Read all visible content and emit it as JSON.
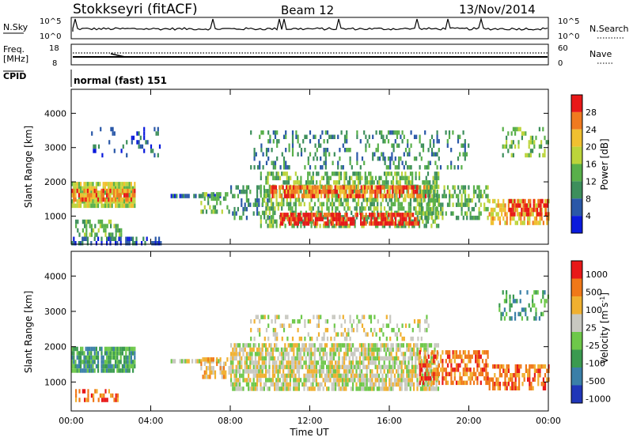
{
  "header": {
    "station": "Stokkseyri (fitACF)",
    "beam": "Beam 12",
    "date": "13/Nov/2014"
  },
  "strip": {
    "nsky_label": "N.Sky",
    "nsky_top": "10^5",
    "nsky_bottom": "10^0",
    "nsearch_label": "N.Search",
    "freq_label": "Freq.",
    "freq_unit": "[MHz]",
    "freq_top": "18",
    "freq_bottom": "8",
    "nave_label": "Nave",
    "nave_top": "60",
    "nave_bottom": "0",
    "cpid_label": "CPID",
    "cpid_value": "normal (fast) 151",
    "nsky_right_top": "10^5",
    "nsky_right_bottom": "10^0"
  },
  "chart_data": [
    {
      "type": "heatmap",
      "panel": "power",
      "ylabel": "Slant Range [km]",
      "yticks": [
        1000,
        2000,
        3000,
        4000
      ],
      "ylim": [
        180,
        4700
      ],
      "xticks": [
        "00:00",
        "04:00",
        "08:00",
        "12:00",
        "16:00",
        "20:00",
        "00:00"
      ],
      "xlim_hours": [
        0,
        24
      ],
      "colorbar_label": "Power [dB]",
      "colorbar_ticks": [
        "4",
        "8",
        "12",
        "16",
        "20",
        "24",
        "28"
      ],
      "colors": [
        "#0a1adc",
        "#2a58a8",
        "#3d8f5c",
        "#59b04a",
        "#bcd43a",
        "#f0c030",
        "#f07a20",
        "#e81818"
      ],
      "bands": [
        {
          "t0": 0.0,
          "t1": 3.2,
          "r0": 1300,
          "r1": 2000,
          "level": 4,
          "density": 0.9
        },
        {
          "t0": 0.0,
          "t1": 3.2,
          "r0": 1450,
          "r1": 1800,
          "level": 6,
          "density": 0.7
        },
        {
          "t0": 0.2,
          "t1": 2.5,
          "r0": 500,
          "r1": 900,
          "level": 3,
          "density": 0.5
        },
        {
          "t0": 0.0,
          "t1": 4.5,
          "r0": 190,
          "r1": 400,
          "level": 1,
          "density": 0.5
        },
        {
          "t0": 1.0,
          "t1": 4.5,
          "r0": 2800,
          "r1": 3600,
          "level": 1,
          "density": 0.15
        },
        {
          "t0": 5.0,
          "t1": 7.5,
          "r0": 1550,
          "r1": 1650,
          "level": 1,
          "density": 0.7
        },
        {
          "t0": 6.5,
          "t1": 8.0,
          "r0": 1100,
          "r1": 1700,
          "level": 3,
          "density": 0.5
        },
        {
          "t0": 8.0,
          "t1": 10.0,
          "r0": 900,
          "r1": 1900,
          "level": 2,
          "density": 0.35
        },
        {
          "t0": 9.5,
          "t1": 18.5,
          "r0": 750,
          "r1": 2300,
          "level": 3,
          "density": 0.55
        },
        {
          "t0": 10.0,
          "t1": 18.0,
          "r0": 1550,
          "r1": 1900,
          "level": 6,
          "density": 0.75
        },
        {
          "t0": 10.5,
          "t1": 17.5,
          "r0": 800,
          "r1": 1100,
          "level": 7,
          "density": 0.75
        },
        {
          "t0": 9.0,
          "t1": 20.0,
          "r0": 2400,
          "r1": 3500,
          "level": 2,
          "density": 0.25
        },
        {
          "t0": 17.5,
          "t1": 21.0,
          "r0": 1000,
          "r1": 1900,
          "level": 3,
          "density": 0.45
        },
        {
          "t0": 21.0,
          "t1": 24.0,
          "r0": 800,
          "r1": 1500,
          "level": 5,
          "density": 0.6
        },
        {
          "t0": 22.0,
          "t1": 24.0,
          "r0": 1100,
          "r1": 1500,
          "level": 7,
          "density": 0.6
        },
        {
          "t0": 21.5,
          "t1": 24.0,
          "r0": 2800,
          "r1": 3600,
          "level": 3,
          "density": 0.3
        }
      ]
    },
    {
      "type": "heatmap",
      "panel": "velocity",
      "ylabel": "Slant Range [km]",
      "yticks": [
        1000,
        2000,
        3000,
        4000
      ],
      "ylim": [
        180,
        4700
      ],
      "xticks": [
        "00:00",
        "04:00",
        "08:00",
        "12:00",
        "16:00",
        "20:00",
        "00:00"
      ],
      "xlim_hours": [
        0,
        24
      ],
      "xlabel": "Time UT",
      "colorbar_label": "Velocity [m s^-1]",
      "colorbar_ticks": [
        "1000",
        "500",
        "100",
        "25",
        "-25",
        "-100",
        "-500",
        "-1000"
      ],
      "colors": [
        "#2036b8",
        "#3a7fa8",
        "#3a9a50",
        "#6ec84a",
        "#c8c8c0",
        "#f0b030",
        "#f07818",
        "#e81818"
      ],
      "bands": [
        {
          "t0": 0.0,
          "t1": 3.2,
          "r0": 1300,
          "r1": 2000,
          "level": 2,
          "density": 0.85
        },
        {
          "t0": 0.2,
          "t1": 2.5,
          "r0": 450,
          "r1": 800,
          "level": 6,
          "density": 0.5
        },
        {
          "t0": 5.0,
          "t1": 7.5,
          "r0": 1550,
          "r1": 1650,
          "level": 4,
          "density": 0.8
        },
        {
          "t0": 6.5,
          "t1": 8.0,
          "r0": 1100,
          "r1": 1700,
          "level": 5,
          "density": 0.5
        },
        {
          "t0": 8.0,
          "t1": 18.5,
          "r0": 800,
          "r1": 2100,
          "level": 4,
          "density": 0.75
        },
        {
          "t0": 9.0,
          "t1": 18.0,
          "r0": 2200,
          "r1": 2900,
          "level": 4,
          "density": 0.25
        },
        {
          "t0": 17.5,
          "t1": 21.0,
          "r0": 1000,
          "r1": 1900,
          "level": 6,
          "density": 0.6
        },
        {
          "t0": 21.0,
          "t1": 24.0,
          "r0": 800,
          "r1": 1500,
          "level": 6,
          "density": 0.55
        },
        {
          "t0": 21.5,
          "t1": 24.0,
          "r0": 2800,
          "r1": 3600,
          "level": 2,
          "density": 0.3
        }
      ]
    }
  ]
}
